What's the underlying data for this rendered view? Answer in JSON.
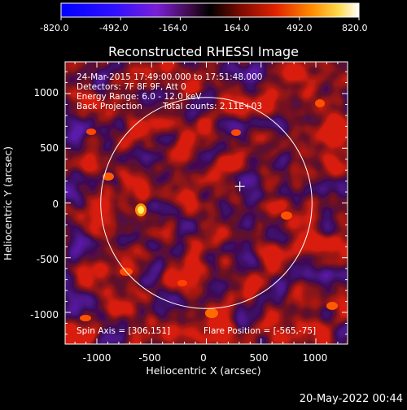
{
  "title": "Reconstructed RHESSI Image",
  "colorbar": {
    "tick_labels": [
      "-820.0",
      "-492.0",
      "-164.0",
      "164.0",
      "492.0",
      "820.0"
    ],
    "min": -820.0,
    "max": 820.0
  },
  "info": {
    "line1": "24-Mar-2015 17:49:00.000 to 17:51:48.000",
    "line2": "Detectors: 7F 8F 9F, Att 0",
    "line3": "Energy Range: 6.0 - 12.0 keV",
    "line4a": "Back Projection",
    "line4b": "Total counts: 2.11E+03",
    "spin_axis": "Spin Axis = [306,151]",
    "flare_position": "Flare Position = [-565,-75]"
  },
  "axes": {
    "xlabel": "Heliocentric X (arcsec)",
    "ylabel": "Heliocentric Y (arcsec)",
    "x_ticks": [
      "-1000",
      "-500",
      "0",
      "500",
      "1000"
    ],
    "y_ticks": [
      "1000",
      "500",
      "0",
      "-500",
      "-1000"
    ],
    "x_tick_values": [
      -1000,
      -500,
      0,
      500,
      1000
    ],
    "y_tick_values": [
      1000,
      500,
      0,
      -500,
      -1000
    ],
    "xlim": [
      -1290,
      1290
    ],
    "ylim": [
      -1290,
      1290
    ]
  },
  "solar_disk_radius_arcsec": 965,
  "marker_position_arcsec": [
    306,
    151
  ],
  "timestamp": "20-May-2022 00:44"
}
